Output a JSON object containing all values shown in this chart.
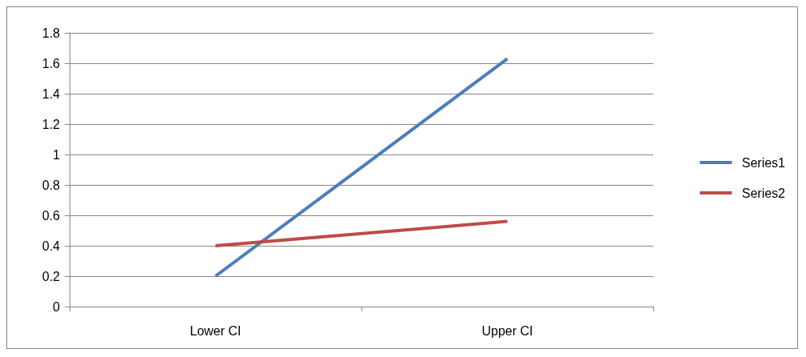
{
  "chart_data": {
    "type": "line",
    "categories": [
      "Lower CI",
      "Upper CI"
    ],
    "series": [
      {
        "name": "Series1",
        "color": "#4a7ebb",
        "values": [
          0.2,
          1.63
        ]
      },
      {
        "name": "Series2",
        "color": "#be4b48",
        "values": [
          0.4,
          0.56
        ]
      }
    ],
    "ylim": [
      0,
      1.8
    ],
    "yticks": [
      0,
      0.2,
      0.4,
      0.6,
      0.8,
      1,
      1.2,
      1.4,
      1.6,
      1.8
    ],
    "grid": "y",
    "legend": "right",
    "marker": "none",
    "line_style": "solid"
  }
}
